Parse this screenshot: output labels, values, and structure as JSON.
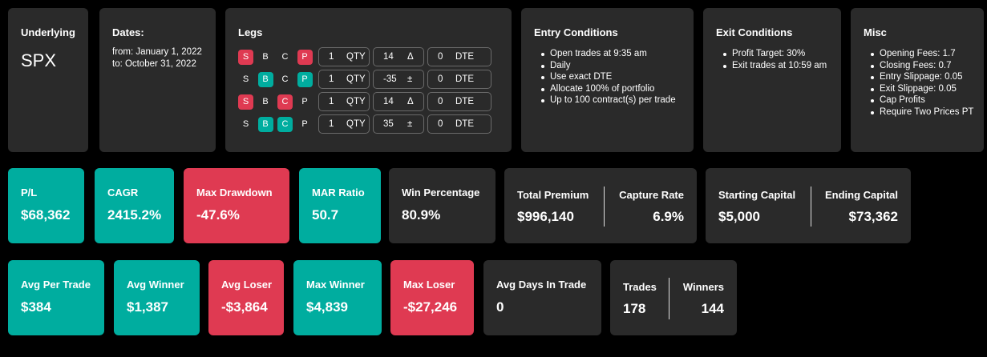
{
  "underlying": {
    "title": "Underlying",
    "value": "SPX"
  },
  "dates": {
    "title": "Dates:",
    "from": "from: January 1, 2022",
    "to": "to: October 31, 2022"
  },
  "legs": {
    "title": "Legs",
    "rows": [
      {
        "s": "S",
        "b": "B",
        "c": "C",
        "p": "P",
        "qty": "1",
        "qty_unit": "QTY",
        "delta": "14",
        "delta_unit": "Δ",
        "dte": "0",
        "dte_unit": "DTE"
      },
      {
        "s": "S",
        "b": "B",
        "c": "C",
        "p": "P",
        "qty": "1",
        "qty_unit": "QTY",
        "delta": "-35",
        "delta_unit": "±",
        "dte": "0",
        "dte_unit": "DTE"
      },
      {
        "s": "S",
        "b": "B",
        "c": "C",
        "p": "P",
        "qty": "1",
        "qty_unit": "QTY",
        "delta": "14",
        "delta_unit": "Δ",
        "dte": "0",
        "dte_unit": "DTE"
      },
      {
        "s": "S",
        "b": "B",
        "c": "C",
        "p": "P",
        "qty": "1",
        "qty_unit": "QTY",
        "delta": "35",
        "delta_unit": "±",
        "dte": "0",
        "dte_unit": "DTE"
      }
    ]
  },
  "entry": {
    "title": "Entry Conditions",
    "items": [
      "Open trades at 9:35 am",
      "Daily",
      "Use exact DTE",
      "Allocate 100% of portfolio",
      "Up to 100 contract(s) per trade"
    ]
  },
  "exit": {
    "title": "Exit Conditions",
    "items": [
      "Profit Target: 30%",
      "Exit trades at 10:59 am"
    ]
  },
  "misc": {
    "title": "Misc",
    "items": [
      "Opening Fees: 1.7",
      "Closing Fees: 0.7",
      "Entry Slippage: 0.05",
      "Exit Slippage: 0.05",
      "Cap Profits",
      "Require Two Prices PT"
    ]
  },
  "stats1": {
    "pl": {
      "title": "P/L",
      "value": "$68,362"
    },
    "cagr": {
      "title": "CAGR",
      "value": "2415.2%"
    },
    "max_drawdown": {
      "title": "Max Drawdown",
      "value": "-47.6%"
    },
    "mar_ratio": {
      "title": "MAR Ratio",
      "value": "50.7"
    },
    "win_percentage": {
      "title": "Win Percentage",
      "value": "80.9%"
    },
    "total_premium": {
      "title": "Total Premium",
      "value": "$996,140"
    },
    "capture_rate": {
      "title": "Capture Rate",
      "value": "6.9%"
    },
    "starting_capital": {
      "title": "Starting Capital",
      "value": "$5,000"
    },
    "ending_capital": {
      "title": "Ending Capital",
      "value": "$73,362"
    }
  },
  "stats2": {
    "avg_per_trade": {
      "title": "Avg Per Trade",
      "value": "$384"
    },
    "avg_winner": {
      "title": "Avg Winner",
      "value": "$1,387"
    },
    "avg_loser": {
      "title": "Avg Loser",
      "value": "-$3,864"
    },
    "max_winner": {
      "title": "Max Winner",
      "value": "$4,839"
    },
    "max_loser": {
      "title": "Max Loser",
      "value": "-$27,246"
    },
    "avg_days": {
      "title": "Avg Days In Trade",
      "value": "0"
    },
    "trades": {
      "title": "Trades",
      "value": "178"
    },
    "winners": {
      "title": "Winners",
      "value": "144"
    }
  },
  "colors": {
    "teal": "#00ad9f",
    "red": "#df3a52",
    "card": "#2a2a2a",
    "background": "#000000"
  }
}
